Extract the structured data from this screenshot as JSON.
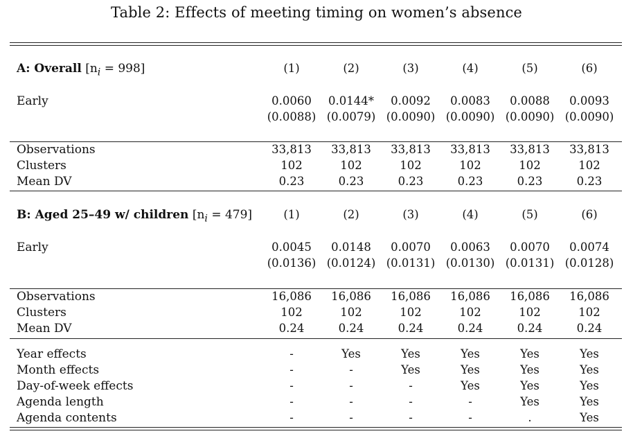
{
  "title": "Table 2: Effects of meeting timing on women’s absence",
  "column_numbers": [
    "(1)",
    "(2)",
    "(3)",
    "(4)",
    "(5)",
    "(6)"
  ],
  "panel_a": {
    "name": "A: Overall",
    "n_label": "[n",
    "n_sub": "i",
    "n_value": " = 998]",
    "early_label": "Early",
    "early_coef": [
      "0.0060",
      "0.0144*",
      "0.0092",
      "0.0083",
      "0.0088",
      "0.0093"
    ],
    "early_se": [
      "(0.0088)",
      "(0.0079)",
      "(0.0090)",
      "(0.0090)",
      "(0.0090)",
      "(0.0090)"
    ],
    "stats": [
      {
        "label": "Observations",
        "values": [
          "33,813",
          "33,813",
          "33,813",
          "33,813",
          "33,813",
          "33,813"
        ]
      },
      {
        "label": "Clusters",
        "values": [
          "102",
          "102",
          "102",
          "102",
          "102",
          "102"
        ]
      },
      {
        "label": "Mean DV",
        "values": [
          "0.23",
          "0.23",
          "0.23",
          "0.23",
          "0.23",
          "0.23"
        ]
      }
    ]
  },
  "panel_b": {
    "name": "B: Aged 25–49 w/ children",
    "n_label": "[n",
    "n_sub": "i",
    "n_value": " = 479]",
    "early_label": "Early",
    "early_coef": [
      "0.0045",
      "0.0148",
      "0.0070",
      "0.0063",
      "0.0070",
      "0.0074"
    ],
    "early_se": [
      "(0.0136)",
      "(0.0124)",
      "(0.0131)",
      "(0.0130)",
      "(0.0131)",
      "(0.0128)"
    ],
    "stats": [
      {
        "label": "Observations",
        "values": [
          "16,086",
          "16,086",
          "16,086",
          "16,086",
          "16,086",
          "16,086"
        ]
      },
      {
        "label": "Clusters",
        "values": [
          "102",
          "102",
          "102",
          "102",
          "102",
          "102"
        ]
      },
      {
        "label": "Mean DV",
        "values": [
          "0.24",
          "0.24",
          "0.24",
          "0.24",
          "0.24",
          "0.24"
        ]
      }
    ]
  },
  "controls": [
    {
      "label": "Year effects",
      "values": [
        "-",
        "Yes",
        "Yes",
        "Yes",
        "Yes",
        "Yes"
      ]
    },
    {
      "label": "Month effects",
      "values": [
        "-",
        "-",
        "Yes",
        "Yes",
        "Yes",
        "Yes"
      ]
    },
    {
      "label": "Day-of-week effects",
      "values": [
        "-",
        "-",
        "-",
        "Yes",
        "Yes",
        "Yes"
      ]
    },
    {
      "label": "Agenda length",
      "values": [
        "-",
        "-",
        "-",
        "-",
        "Yes",
        "Yes"
      ]
    },
    {
      "label": "Agenda contents",
      "values": [
        "-",
        "-",
        "-",
        "-",
        ".",
        "Yes"
      ]
    }
  ]
}
